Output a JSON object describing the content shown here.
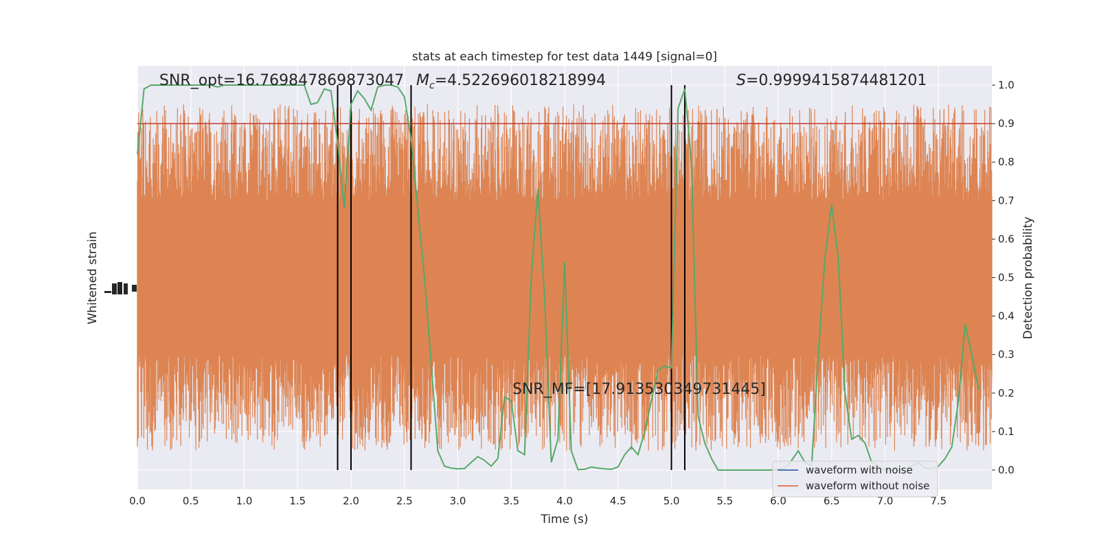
{
  "chart_data": {
    "type": "line",
    "title": "stats at each timestep for test data 1449 [signal=0]",
    "xlabel": "Time (s)",
    "ylabel_left": "Whitened strain",
    "ylabel_right": "Detection probability",
    "xlim": [
      0.0,
      8.0
    ],
    "ylim_right": [
      -0.05,
      1.05
    ],
    "x_ticks": [
      "0.0",
      "0.5",
      "1.0",
      "1.5",
      "2.0",
      "2.5",
      "3.0",
      "3.5",
      "4.0",
      "4.5",
      "5.0",
      "5.5",
      "6.0",
      "6.5",
      "7.0",
      "7.5"
    ],
    "y_ticks_right": [
      "0.0",
      "0.1",
      "0.2",
      "0.3",
      "0.4",
      "0.5",
      "0.6",
      "0.7",
      "0.8",
      "0.9",
      "1.0"
    ],
    "grid": true,
    "annotations": {
      "snr_opt": "SNR_opt=16.769847869873047",
      "mc_symbol": "M",
      "mc_sub": "c",
      "mc_value": "=4.522696018218994",
      "s_symbol": "S",
      "s_value": "=0.9999415874481201",
      "snr_mf": "SNR_MF=[17.913530349731445]"
    },
    "threshold": {
      "value": 0.9,
      "color": "#c0392b"
    },
    "vlines": [
      1.875,
      2.0,
      2.5625,
      5.0,
      5.125
    ],
    "series": [
      {
        "name": "waveform with noise",
        "color": "#4c72b0"
      },
      {
        "name": "waveform without noise",
        "color": "#dd8452"
      }
    ],
    "probability": {
      "color": "#55a868",
      "t0": 0.0,
      "dt": 0.0625,
      "values": [
        0.82,
        0.99,
        1.0,
        1.0,
        1.0,
        1.0,
        1.0,
        1.0,
        1.0,
        1.0,
        1.0,
        1.0,
        0.995,
        1.0,
        1.0,
        1.0,
        1.0,
        1.0,
        1.0,
        1.0,
        1.0,
        1.0,
        1.0,
        1.0,
        1.0,
        1.0,
        0.95,
        0.955,
        0.99,
        0.985,
        0.85,
        0.68,
        0.95,
        0.985,
        0.965,
        0.935,
        0.995,
        1.0,
        1.0,
        0.995,
        0.97,
        0.86,
        0.68,
        0.5,
        0.28,
        0.05,
        0.01,
        0.005,
        0.003,
        0.004,
        0.02,
        0.035,
        0.025,
        0.01,
        0.03,
        0.19,
        0.18,
        0.05,
        0.04,
        0.5,
        0.73,
        0.45,
        0.02,
        0.08,
        0.54,
        0.05,
        0.001,
        0.002,
        0.008,
        0.005,
        0.003,
        0.002,
        0.008,
        0.04,
        0.06,
        0.04,
        0.1,
        0.18,
        0.26,
        0.27,
        0.265,
        0.94,
        0.99,
        0.8,
        0.14,
        0.07,
        0.03,
        0.0,
        0.0,
        0.0,
        0.0,
        0.0,
        0.0,
        0.0,
        0.0,
        0.0,
        0.002,
        0.005,
        0.025,
        0.05,
        0.02,
        0.01,
        0.3,
        0.55,
        0.69,
        0.55,
        0.2,
        0.08,
        0.09,
        0.07,
        0.02,
        0.01,
        0.0,
        0.0,
        0.0,
        0.005,
        0.01,
        0.02,
        0.005,
        0.004,
        0.01,
        0.03,
        0.06,
        0.18,
        0.38,
        0.3,
        0.21
      ]
    },
    "strain": {
      "color": "#dd8452",
      "sample_count": 4096,
      "core": [
        0.3,
        0.7
      ],
      "spread": 0.25
    }
  },
  "legend": {
    "location": "lower-right"
  },
  "colors": {
    "plot_bg": "#eaeaf2",
    "grid": "#ffffff",
    "vline": "#000000"
  }
}
